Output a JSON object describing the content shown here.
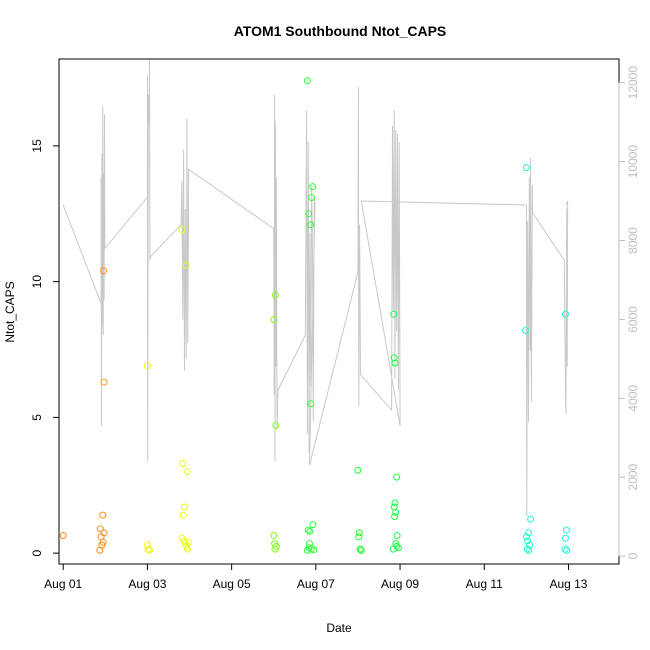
{
  "chart_data": {
    "type": "scatter",
    "title": "ATOM1 Southbound Ntot_CAPS",
    "xlabel": "Date",
    "ylabel": "Ntot_CAPS",
    "x_unit": "days since Aug 01",
    "xlim": [
      -0.1,
      13.2
    ],
    "ylim": [
      -0.4,
      18.2
    ],
    "y2lim": [
      -200,
      12600
    ],
    "x_ticks": [
      {
        "value": 0,
        "label": "Aug 01"
      },
      {
        "value": 2,
        "label": "Aug 03"
      },
      {
        "value": 4,
        "label": "Aug 05"
      },
      {
        "value": 6,
        "label": "Aug 07"
      },
      {
        "value": 8,
        "label": "Aug 09"
      },
      {
        "value": 10,
        "label": "Aug 11"
      },
      {
        "value": 12,
        "label": "Aug 13"
      }
    ],
    "y_ticks": [
      0,
      5,
      10,
      15
    ],
    "y2_ticks": [
      0,
      2000,
      4000,
      6000,
      8000,
      10000,
      12000
    ],
    "series": [
      {
        "name": "Ntot_CAPS",
        "style": "points",
        "points": [
          {
            "x": 0.0,
            "y": 0.65,
            "color": "#ff8c1a"
          },
          {
            "x": 0.88,
            "y": 0.9,
            "color": "#ff8c1a"
          },
          {
            "x": 0.9,
            "y": 0.6,
            "color": "#ff8c1a"
          },
          {
            "x": 0.92,
            "y": 0.3,
            "color": "#ff8c1a"
          },
          {
            "x": 0.87,
            "y": 0.1,
            "color": "#ff8c1a"
          },
          {
            "x": 0.95,
            "y": 0.4,
            "color": "#ff8c1a"
          },
          {
            "x": 0.97,
            "y": 0.75,
            "color": "#ff8c1a"
          },
          {
            "x": 0.94,
            "y": 1.4,
            "color": "#ff8c1a"
          },
          {
            "x": 0.96,
            "y": 10.4,
            "color": "#ff8c1a"
          },
          {
            "x": 0.97,
            "y": 6.3,
            "color": "#ff9a1a"
          },
          {
            "x": 2.0,
            "y": 6.9,
            "color": "#f0f01a"
          },
          {
            "x": 2.0,
            "y": 0.3,
            "color": "#f0f01a"
          },
          {
            "x": 2.02,
            "y": 0.15,
            "color": "#f0f01a"
          },
          {
            "x": 2.05,
            "y": 0.1,
            "color": "#f0f01a"
          },
          {
            "x": 2.82,
            "y": 11.9,
            "color": "#e8ff1a"
          },
          {
            "x": 2.92,
            "y": 10.6,
            "color": "#e8ff1a"
          },
          {
            "x": 2.84,
            "y": 3.3,
            "color": "#e8ff1a"
          },
          {
            "x": 2.95,
            "y": 3.0,
            "color": "#e8ff1a"
          },
          {
            "x": 2.88,
            "y": 1.7,
            "color": "#e8ff1a"
          },
          {
            "x": 2.85,
            "y": 1.4,
            "color": "#e8ff1a"
          },
          {
            "x": 2.82,
            "y": 0.55,
            "color": "#e8ff1a"
          },
          {
            "x": 2.87,
            "y": 0.45,
            "color": "#e8ff1a"
          },
          {
            "x": 2.9,
            "y": 0.35,
            "color": "#e8ff1a"
          },
          {
            "x": 2.93,
            "y": 0.25,
            "color": "#e8ff1a"
          },
          {
            "x": 2.95,
            "y": 0.15,
            "color": "#e8ff1a"
          },
          {
            "x": 2.97,
            "y": 0.4,
            "color": "#e8ff1a"
          },
          {
            "x": 5.0,
            "y": 8.6,
            "color": "#7fff1a"
          },
          {
            "x": 5.04,
            "y": 9.5,
            "color": "#7fff1a"
          },
          {
            "x": 5.05,
            "y": 4.7,
            "color": "#7fff1a"
          },
          {
            "x": 5.0,
            "y": 0.65,
            "color": "#7fff1a"
          },
          {
            "x": 5.02,
            "y": 0.35,
            "color": "#7fff1a"
          },
          {
            "x": 5.03,
            "y": 0.15,
            "color": "#7fff1a"
          },
          {
            "x": 5.06,
            "y": 0.25,
            "color": "#7fff1a"
          },
          {
            "x": 5.8,
            "y": 17.4,
            "color": "#2fff3a"
          },
          {
            "x": 5.83,
            "y": 12.5,
            "color": "#2fff3a"
          },
          {
            "x": 5.87,
            "y": 12.1,
            "color": "#2fff3a"
          },
          {
            "x": 5.9,
            "y": 13.1,
            "color": "#2fff3a"
          },
          {
            "x": 5.92,
            "y": 13.5,
            "color": "#2fff3a"
          },
          {
            "x": 5.88,
            "y": 5.5,
            "color": "#2fff3a"
          },
          {
            "x": 5.82,
            "y": 0.85,
            "color": "#2fff3a"
          },
          {
            "x": 5.86,
            "y": 0.8,
            "color": "#2fff3a"
          },
          {
            "x": 5.93,
            "y": 1.05,
            "color": "#2fff3a"
          },
          {
            "x": 5.8,
            "y": 0.1,
            "color": "#2fff3a"
          },
          {
            "x": 5.84,
            "y": 0.2,
            "color": "#2fff3a"
          },
          {
            "x": 5.89,
            "y": 0.15,
            "color": "#2fff3a"
          },
          {
            "x": 5.95,
            "y": 0.12,
            "color": "#2fff3a"
          },
          {
            "x": 5.85,
            "y": 0.35,
            "color": "#2fff3a"
          },
          {
            "x": 7.0,
            "y": 3.05,
            "color": "#1aff2a"
          },
          {
            "x": 7.03,
            "y": 0.75,
            "color": "#1aff2a"
          },
          {
            "x": 7.02,
            "y": 0.6,
            "color": "#1aff2a"
          },
          {
            "x": 7.05,
            "y": 0.15,
            "color": "#1aff2a"
          },
          {
            "x": 7.08,
            "y": 0.1,
            "color": "#1aff2a"
          },
          {
            "x": 7.85,
            "y": 8.8,
            "color": "#1aff4a"
          },
          {
            "x": 7.86,
            "y": 7.2,
            "color": "#1aff4a"
          },
          {
            "x": 7.88,
            "y": 7.0,
            "color": "#1aff4a"
          },
          {
            "x": 7.92,
            "y": 2.8,
            "color": "#1aff4a"
          },
          {
            "x": 7.88,
            "y": 1.85,
            "color": "#1aff4a"
          },
          {
            "x": 7.86,
            "y": 1.7,
            "color": "#1aff4a"
          },
          {
            "x": 7.9,
            "y": 1.5,
            "color": "#1aff4a"
          },
          {
            "x": 7.87,
            "y": 1.35,
            "color": "#1aff4a"
          },
          {
            "x": 7.93,
            "y": 0.65,
            "color": "#1aff4a"
          },
          {
            "x": 7.9,
            "y": 0.35,
            "color": "#1aff4a"
          },
          {
            "x": 7.84,
            "y": 0.15,
            "color": "#1aff4a"
          },
          {
            "x": 7.96,
            "y": 0.2,
            "color": "#1aff4a"
          },
          {
            "x": 7.92,
            "y": 0.25,
            "color": "#1aff4a"
          },
          {
            "x": 11.0,
            "y": 14.2,
            "color": "#1affd0"
          },
          {
            "x": 10.98,
            "y": 8.2,
            "color": "#1affd0"
          },
          {
            "x": 11.1,
            "y": 1.25,
            "color": "#1affd0"
          },
          {
            "x": 11.05,
            "y": 0.75,
            "color": "#1affd0"
          },
          {
            "x": 11.0,
            "y": 0.6,
            "color": "#1affd0"
          },
          {
            "x": 11.03,
            "y": 0.45,
            "color": "#1affd0"
          },
          {
            "x": 11.08,
            "y": 0.3,
            "color": "#1affd0"
          },
          {
            "x": 11.02,
            "y": 0.15,
            "color": "#1affd0"
          },
          {
            "x": 11.06,
            "y": 0.1,
            "color": "#1affd0"
          },
          {
            "x": 11.93,
            "y": 8.8,
            "color": "#1affe0"
          },
          {
            "x": 11.95,
            "y": 0.85,
            "color": "#1affe0"
          },
          {
            "x": 11.93,
            "y": 0.55,
            "color": "#1affe0"
          },
          {
            "x": 11.92,
            "y": 0.15,
            "color": "#1affe0"
          },
          {
            "x": 11.96,
            "y": 0.1,
            "color": "#1affe0"
          }
        ]
      },
      {
        "name": "secondary axis trace",
        "style": "line",
        "color": "#c8c8c8",
        "axis": "right",
        "x": [
          0.0,
          0.9,
          0.9,
          0.91,
          0.92,
          0.93,
          0.94,
          0.95,
          0.96,
          0.97,
          0.98,
          0.99,
          2.0,
          2.0,
          2.01,
          2.02,
          2.04,
          2.05,
          2.06,
          2.08,
          2.8,
          2.82,
          2.84,
          2.86,
          2.88,
          2.9,
          2.92,
          2.94,
          2.96,
          2.98,
          5.0,
          5.01,
          5.02,
          5.03,
          5.04,
          5.05,
          5.06,
          5.08,
          5.1,
          5.75,
          5.78,
          5.8,
          5.82,
          5.84,
          5.86,
          5.88,
          5.9,
          5.92,
          5.94,
          5.96,
          5.98,
          5.85,
          7.0,
          7.01,
          7.02,
          7.04,
          7.06,
          7.8,
          7.82,
          7.84,
          7.86,
          7.88,
          7.9,
          7.92,
          7.94,
          7.96,
          7.98,
          8.0,
          7.08,
          11.0,
          11.01,
          11.03,
          11.05,
          11.07,
          11.09,
          11.1,
          11.12,
          11.14,
          11.15,
          11.9,
          11.92,
          11.94,
          11.96,
          11.97,
          11.98,
          11.94
        ],
        "y": [
          8900,
          6400,
          9600,
          3300,
          10200,
          5800,
          11400,
          5600,
          9700,
          6500,
          11200,
          7800,
          9100,
          12200,
          2400,
          11700,
          11000,
          12600,
          7500,
          7600,
          8400,
          9500,
          6000,
          10300,
          4700,
          8800,
          5000,
          11100,
          5400,
          9800,
          8300,
          4100,
          11700,
          2400,
          11000,
          4800,
          9600,
          3200,
          4200,
          5600,
          11300,
          3100,
          10500,
          2600,
          8200,
          4300,
          9400,
          7700,
          3400,
          9100,
          8900,
          2300,
          7200,
          11900,
          3800,
          8400,
          4600,
          3700,
          10900,
          6200,
          11300,
          4500,
          10800,
          5700,
          10700,
          4200,
          10500,
          3300,
          9000,
          8900,
          1000,
          8500,
          3400,
          9600,
          5200,
          10100,
          3900,
          9400,
          8700,
          7500,
          5200,
          3600,
          8800,
          4800,
          9000,
          8900
        ]
      }
    ]
  }
}
